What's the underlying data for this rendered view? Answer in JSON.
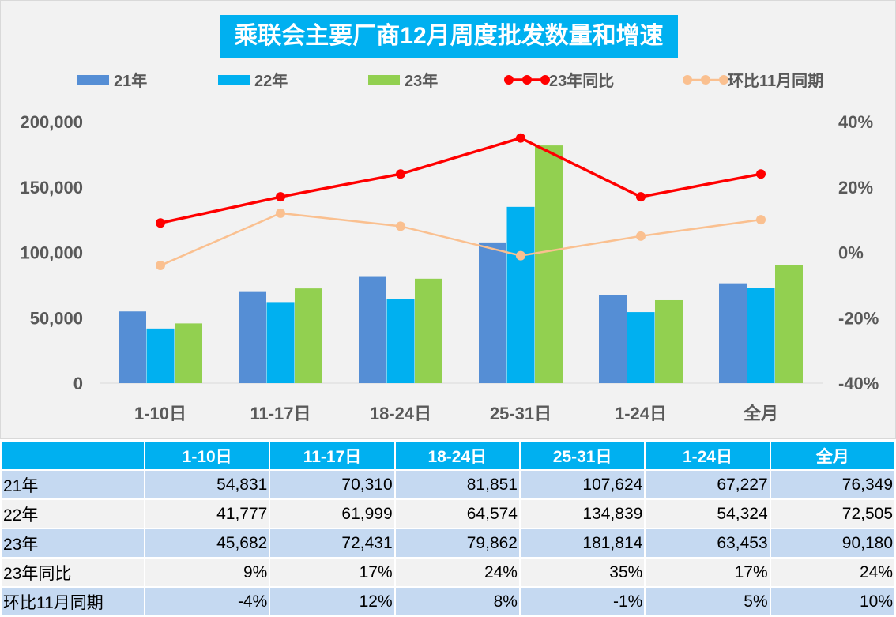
{
  "chart_data": {
    "type": "bar",
    "title": "乘联会主要厂商12月周度批发数量和增速",
    "categories": [
      "1-10日",
      "11-17日",
      "18-24日",
      "25-31日",
      "1-24日",
      "全月"
    ],
    "series": [
      {
        "name": "21年",
        "type": "bar",
        "axis": "left",
        "color": "#558ed5",
        "values": [
          54831,
          70310,
          81851,
          107624,
          67227,
          76349
        ]
      },
      {
        "name": "22年",
        "type": "bar",
        "axis": "left",
        "color": "#00b0f0",
        "values": [
          41777,
          61999,
          64574,
          134839,
          54324,
          72505
        ]
      },
      {
        "name": "23年",
        "type": "bar",
        "axis": "left",
        "color": "#92d050",
        "values": [
          45682,
          72431,
          79862,
          181814,
          63453,
          90180
        ]
      },
      {
        "name": "23年同比",
        "type": "line",
        "axis": "right",
        "color": "#ff0000",
        "values": [
          9,
          17,
          24,
          35,
          17,
          24
        ]
      },
      {
        "name": "环比11月同期",
        "type": "line",
        "axis": "right",
        "color": "#fac090",
        "values": [
          -4,
          12,
          8,
          -1,
          5,
          10
        ]
      }
    ],
    "y_left": {
      "range": [
        0,
        200000
      ],
      "ticks": [
        "0",
        "50,000",
        "100,000",
        "150,000",
        "200,000"
      ]
    },
    "y_right": {
      "range": [
        -40,
        40
      ],
      "unit": "%",
      "ticks": [
        "-40%",
        "-20%",
        "0%",
        "20%",
        "40%"
      ]
    },
    "legend_position": "top",
    "grid": false
  },
  "table": {
    "header": [
      "",
      "1-10日",
      "11-17日",
      "18-24日",
      "25-31日",
      "1-24日",
      "全月"
    ],
    "rows": [
      [
        "21年",
        "54,831",
        "70,310",
        "81,851",
        "107,624",
        "67,227",
        "76,349"
      ],
      [
        "22年",
        "41,777",
        "61,999",
        "64,574",
        "134,839",
        "54,324",
        "72,505"
      ],
      [
        "23年",
        "45,682",
        "72,431",
        "79,862",
        "181,814",
        "63,453",
        "90,180"
      ],
      [
        "23年同比",
        "9%",
        "17%",
        "24%",
        "35%",
        "17%",
        "24%"
      ],
      [
        "环比11月同期",
        "-4%",
        "12%",
        "8%",
        "-1%",
        "5%",
        "10%"
      ]
    ]
  }
}
